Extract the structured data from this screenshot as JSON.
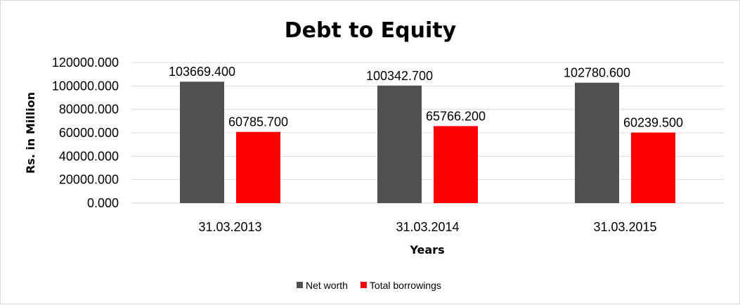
{
  "chart_data": {
    "type": "bar",
    "title": "Debt to Equity",
    "xlabel": "Years",
    "ylabel": "Rs. in Million",
    "categories": [
      "31.03.2013",
      "31.03.2014",
      "31.03.2015"
    ],
    "series": [
      {
        "name": "Net worth",
        "color": "#505050",
        "values": [
          103669.4,
          100342.7,
          102780.6
        ],
        "labels": [
          "103669.400",
          "100342.700",
          "102780.600"
        ]
      },
      {
        "name": "Total borrowings",
        "color": "#ff0000",
        "values": [
          60785.7,
          65766.2,
          60239.5
        ],
        "labels": [
          "60785.700",
          "65766.200",
          "60239.500"
        ]
      }
    ],
    "ylim": [
      0,
      120000
    ],
    "yticks": [
      "0.000",
      "20000.000",
      "40000.000",
      "60000.000",
      "80000.000",
      "100000.000",
      "120000.000"
    ],
    "grid": true,
    "legend_position": "bottom"
  }
}
